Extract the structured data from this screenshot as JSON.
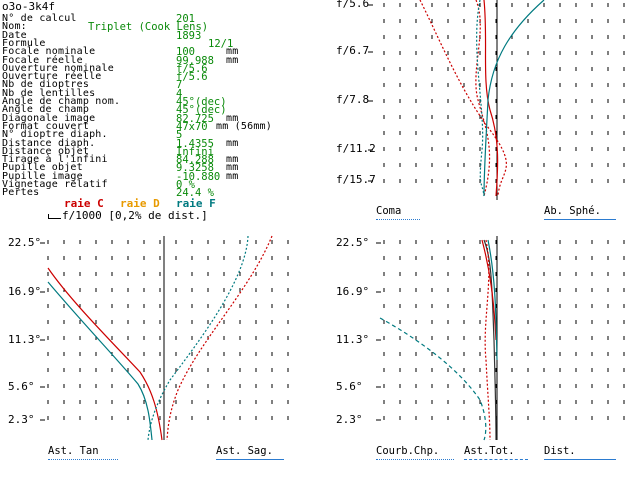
{
  "header": {
    "title": "o3o-3k4f"
  },
  "colors": {
    "label": "#000000",
    "value": "#0a8a0a",
    "raie_c": "#cc0000",
    "raie_d": "#e89a00",
    "raie_f": "#007a80",
    "ast_tot": "#00a0a0",
    "underline": "#2b7bd0"
  },
  "params": [
    {
      "label": "N° de calcul",
      "value": "201"
    },
    {
      "label": "Nom:",
      "value": "Triplet (Cook Lens)"
    },
    {
      "label": "Date",
      "value": "1893"
    },
    {
      "label": "Formule",
      "value": "12/1"
    },
    {
      "label": "Focale nominale",
      "value": "100",
      "unit": "mm"
    },
    {
      "label": "Focale réelle",
      "value": "99.988",
      "unit": "mm"
    },
    {
      "label": "Ouverture nominale",
      "value": "f/5.6"
    },
    {
      "label": "Ouverture réelle",
      "value": "f/5.6"
    },
    {
      "label": "Nb de dioptres",
      "value": "7"
    },
    {
      "label": "Nb de lentilles",
      "value": "4"
    },
    {
      "label": "Angle de champ nom.",
      "value": "45°(dec)"
    },
    {
      "label": "Angle de champ",
      "value": "45°(dec)"
    },
    {
      "label": "Diagonale image",
      "value": "82.725",
      "unit": "mm"
    },
    {
      "label": "Format couvert",
      "value": "47x70",
      "unit": "mm (56mm)"
    },
    {
      "label": "N° dioptre diaph.",
      "value": "5"
    },
    {
      "label": "Distance diaph.",
      "value": "1.4355",
      "unit": "mm"
    },
    {
      "label": "Distance objet",
      "value": "Infini"
    },
    {
      "label": "Tirage à l'infini",
      "value": "84.288",
      "unit": "mm"
    },
    {
      "label": "Pupille objet",
      "value": "9.3258",
      "unit": "mm"
    },
    {
      "label": "Pupille image",
      "value": "-10.880",
      "unit": "mm"
    },
    {
      "label": "Vignetage relatif",
      "value": "0 %"
    },
    {
      "label": "Pertes",
      "value": "24.4 %"
    }
  ],
  "legend": {
    "raie_c": "raie C",
    "raie_d": "raie D",
    "raie_f": "raie F",
    "scale_note": "f/1000 [0,2% de dist.]"
  },
  "charts": {
    "top_right": {
      "y_ticks": [
        "f/5.6",
        "f/6.7",
        "f/7.8",
        "f/11.2",
        "f/15.7"
      ],
      "label_left": "Coma",
      "label_right": "Ab. Sphé."
    },
    "bottom_left": {
      "y_ticks": [
        "22.5°",
        "16.9°",
        "11.3°",
        "5.6°",
        "2.3°"
      ],
      "label_left": "Ast. Tan",
      "label_right": "Ast. Sag."
    },
    "bottom_right": {
      "y_ticks": [
        "22.5°",
        "16.9°",
        "11.3°",
        "5.6°",
        "2.3°"
      ],
      "label_1": "Courb.Chp.",
      "label_2": "Ast.Tot.",
      "label_3": "Dist."
    }
  }
}
